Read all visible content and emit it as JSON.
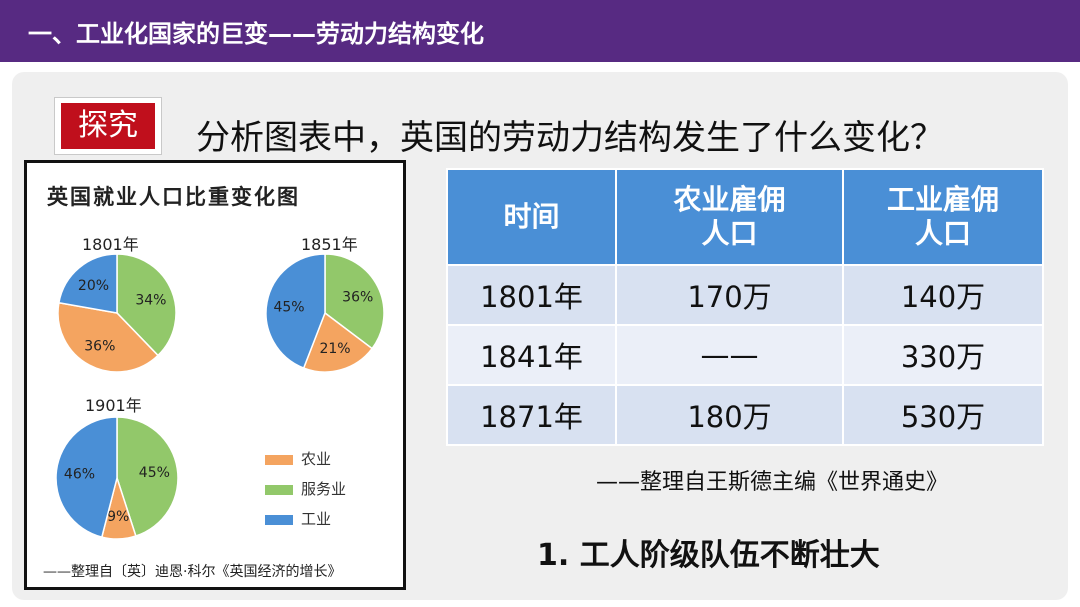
{
  "header": {
    "title": "一、工业化国家的巨变——劳动力结构变化"
  },
  "badge": {
    "label": "探究"
  },
  "question": "分析图表中，英国的劳动力结构发生了什么变化？",
  "chart": {
    "title": "英国就业人口比重变化图",
    "source": "——整理自〔英〕迪恩·科尔《英国经济的增长》",
    "legend": [
      {
        "label": "农业",
        "color": "#f4a460"
      },
      {
        "label": "服务业",
        "color": "#92c86a"
      },
      {
        "label": "工业",
        "color": "#4a8fd6"
      }
    ]
  },
  "chart_data": [
    {
      "type": "pie",
      "title": "1801年",
      "labels": [
        "服务业",
        "农业",
        "工业"
      ],
      "values": [
        34,
        36,
        20
      ],
      "value_labels": [
        "34%",
        "36%",
        "20%"
      ]
    },
    {
      "type": "pie",
      "title": "1851年",
      "labels": [
        "服务业",
        "农业",
        "工业"
      ],
      "values": [
        36,
        21,
        45
      ],
      "value_labels": [
        "36%",
        "21%",
        "45%"
      ]
    },
    {
      "type": "pie",
      "title": "1901年",
      "labels": [
        "服务业",
        "农业",
        "工业"
      ],
      "values": [
        45,
        9,
        46
      ],
      "value_labels": [
        "45%",
        "9%",
        "46%"
      ]
    }
  ],
  "table": {
    "headers": [
      "时间",
      "农业雇佣\n人口",
      "工业雇佣\n人口"
    ],
    "rows": [
      [
        "1801年",
        "170万",
        "140万"
      ],
      [
        "1841年",
        "——",
        "330万"
      ],
      [
        "1871年",
        "180万",
        "530万"
      ]
    ]
  },
  "table_source": "——整理自王斯德主编《世界通史》",
  "conclusion": "1. 工人阶级队伍不断壮大"
}
